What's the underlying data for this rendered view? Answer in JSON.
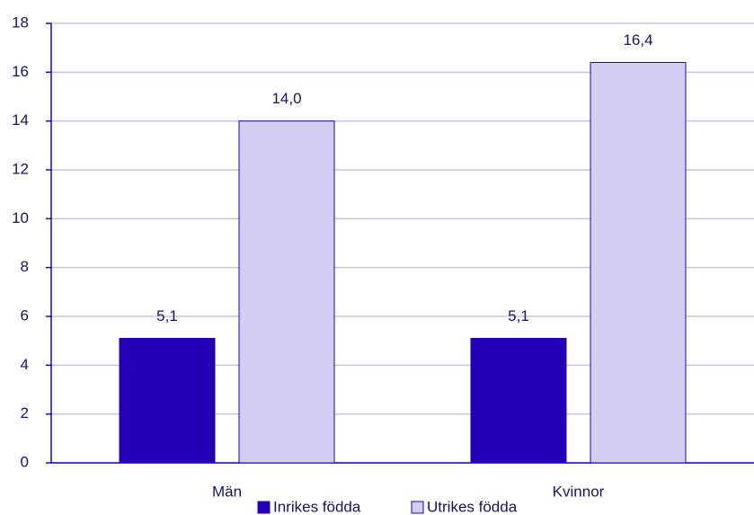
{
  "chart_data": {
    "type": "bar",
    "categories": [
      "Män",
      "Kvinnor"
    ],
    "series": [
      {
        "name": "Inrikes födda",
        "color": "#2400b8",
        "values": [
          5.1,
          5.1
        ],
        "value_labels": [
          "5,1",
          "5,1"
        ]
      },
      {
        "name": "Utrikes födda",
        "color": "#d4cef2",
        "values": [
          14.0,
          16.4
        ],
        "value_labels": [
          "14,0",
          "16,4"
        ]
      }
    ],
    "ylim": [
      0,
      18
    ],
    "yticks": [
      0,
      2,
      4,
      6,
      8,
      10,
      12,
      14,
      16,
      18
    ],
    "grid": true
  }
}
